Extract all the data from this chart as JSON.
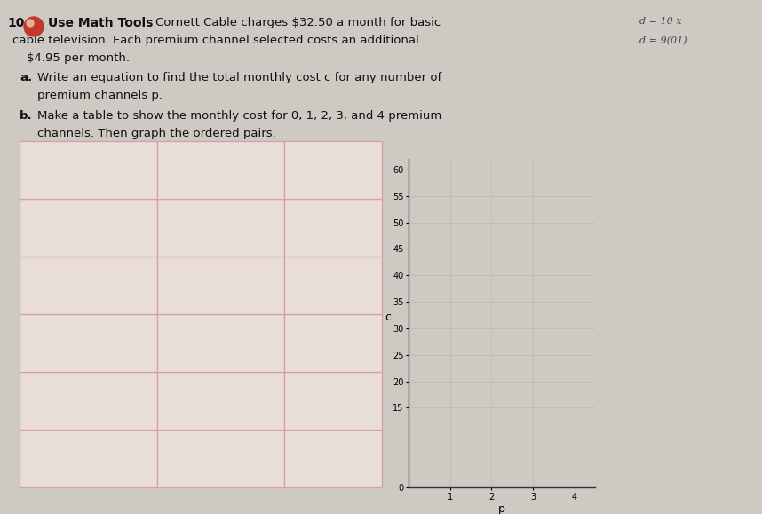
{
  "bg_color": "#cdc9c3",
  "problem_number": "10.",
  "icon_color": "#c0392b",
  "use_math_tools_text": "Use Math Tools",
  "problem_text_line1": "Cornett Cable charges $32.50 a month for basic",
  "problem_text_line2": "cable television. Each premium channel selected costs an additional",
  "problem_text_line3": "$4.95 per month.",
  "part_a_label": "a.",
  "part_a_text": "Write an equation to find the total monthly cost c for any number of",
  "part_a_text2": "premium channels p.",
  "part_b_label": "b.",
  "part_b_text": "Make a table to show the monthly cost for 0, 1, 2, 3, and 4 premium",
  "part_b_text2": "channels. Then graph the ordered pairs.",
  "table_rows": 6,
  "table_cols": 3,
  "table_border_color": "#d4a0a0",
  "table_fill_color": "#e8ddd8",
  "graph_yticks": [
    0,
    15,
    20,
    25,
    30,
    35,
    40,
    45,
    50,
    55,
    60
  ],
  "graph_xticks": [
    1,
    2,
    3,
    4
  ],
  "graph_ylabel": "c",
  "graph_xlabel": "p",
  "graph_ylim": [
    0,
    62
  ],
  "graph_xlim": [
    0,
    4.5
  ],
  "graph_bg": "#cdc9c3",
  "answer_box_color": "#c8d4dc",
  "top_right_text1": "d = 10 x",
  "top_right_text2": "d = 9(01)"
}
